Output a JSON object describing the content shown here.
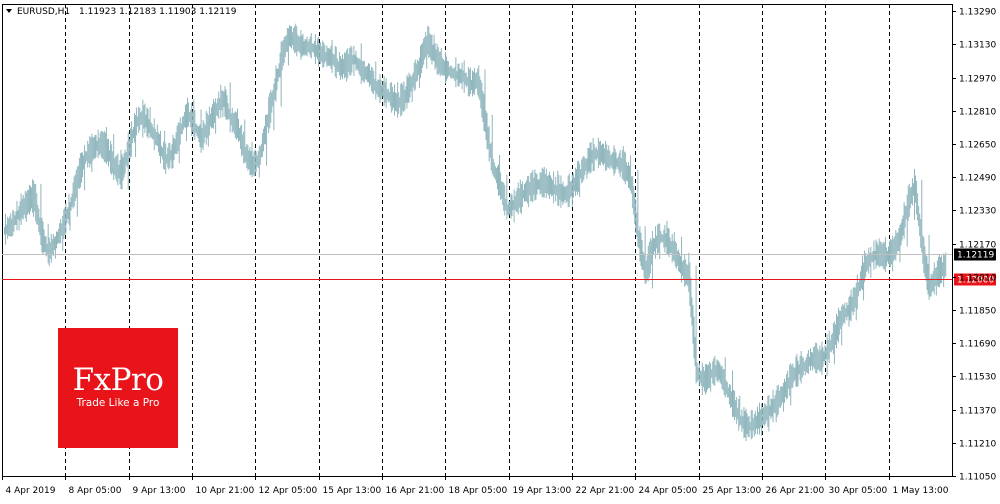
{
  "header": {
    "symbol": "EURUSD,H1",
    "ohlc": "1.11923 1.12183 1.11903 1.12119"
  },
  "logo": {
    "name": "FxPro",
    "tagline": "Trade Like a Pro",
    "background": "#e8141a"
  },
  "colors": {
    "bars": "#8fb6bd",
    "grid": "#000000",
    "level_line": "#e8141a",
    "bid_line": "#c0c0c0"
  },
  "chart_data": {
    "type": "line",
    "style": "ohlc-bars",
    "symbol": "EURUSD",
    "timeframe": "H1",
    "grid": true,
    "ylim": [
      1.1105,
      1.13325
    ],
    "y_ticks": [
      "1.13290",
      "1.13130",
      "1.12970",
      "1.12810",
      "1.12650",
      "1.12490",
      "1.12330",
      "1.12170",
      "1.12010",
      "1.11850",
      "1.11690",
      "1.11530",
      "1.11370",
      "1.11210",
      "1.11050"
    ],
    "x_ticks": [
      "4 Apr 2019",
      "8 Apr 05:00",
      "9 Apr 13:00",
      "10 Apr 21:00",
      "12 Apr 05:00",
      "15 Apr 13:00",
      "16 Apr 21:00",
      "18 Apr 05:00",
      "19 Apr 13:00",
      "22 Apr 21:00",
      "24 Apr 05:00",
      "25 Apr 13:00",
      "26 Apr 21:00",
      "30 Apr 05:00",
      "1 May 13:00"
    ],
    "series": [
      {
        "values": [
          1.1223,
          1.1226,
          1.1232,
          1.1236,
          1.124,
          1.1221,
          1.1212,
          1.1218,
          1.1225,
          1.1235,
          1.1248,
          1.1258,
          1.1262,
          1.1265,
          1.1262,
          1.1254,
          1.125,
          1.1262,
          1.1275,
          1.1278,
          1.1272,
          1.1266,
          1.1257,
          1.126,
          1.127,
          1.128,
          1.1274,
          1.1267,
          1.1275,
          1.1281,
          1.1287,
          1.1277,
          1.1272,
          1.126,
          1.1254,
          1.1258,
          1.1275,
          1.129,
          1.1306,
          1.1317,
          1.1314,
          1.1311,
          1.1312,
          1.1309,
          1.1307,
          1.1306,
          1.1301,
          1.1303,
          1.1306,
          1.13,
          1.1298,
          1.1292,
          1.129,
          1.1287,
          1.1284,
          1.1288,
          1.1295,
          1.1303,
          1.1315,
          1.1307,
          1.1302,
          1.13,
          1.1298,
          1.1297,
          1.1293,
          1.1296,
          1.1275,
          1.1254,
          1.1245,
          1.1233,
          1.1236,
          1.124,
          1.1243,
          1.1245,
          1.1246,
          1.1244,
          1.1242,
          1.124,
          1.1244,
          1.125,
          1.1256,
          1.126,
          1.126,
          1.1257,
          1.1256,
          1.1254,
          1.1247,
          1.122,
          1.1202,
          1.1215,
          1.122,
          1.1218,
          1.1212,
          1.1205,
          1.12,
          1.1155,
          1.115,
          1.1154,
          1.1156,
          1.1148,
          1.114,
          1.1132,
          1.1128,
          1.113,
          1.1133,
          1.1136,
          1.114,
          1.1145,
          1.1152,
          1.1156,
          1.1158,
          1.1162,
          1.116,
          1.1165,
          1.1172,
          1.1182,
          1.1185,
          1.1192,
          1.1205,
          1.121,
          1.1212,
          1.121,
          1.1213,
          1.122,
          1.1235,
          1.1245,
          1.1215,
          1.1195,
          1.1202,
          1.1205,
          1.1212
        ]
      }
    ],
    "levels": [
      {
        "label": "1.12119",
        "value": 1.12119
      },
      {
        "label": "1.12000",
        "value": 1.12
      }
    ]
  }
}
